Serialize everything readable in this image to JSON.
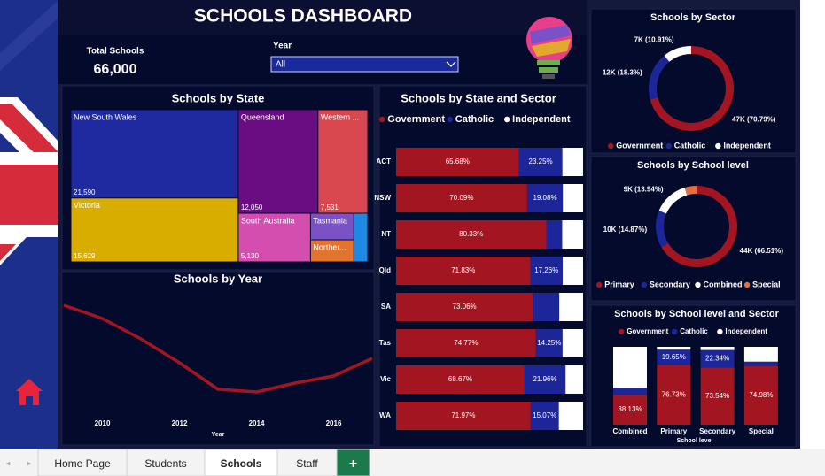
{
  "header": {
    "title": "SCHOOLS DASHBOARD"
  },
  "kpi": {
    "label": "Total Schools",
    "value": "66,000"
  },
  "filter": {
    "label": "Year",
    "value": "All"
  },
  "tabs": [
    "Home Page",
    "Students",
    "Schools",
    "Staff",
    "+"
  ],
  "chart_data": [
    {
      "type": "treemap",
      "title": "Schools by State",
      "categories": [
        "New South Wales",
        "Victoria",
        "Queensland",
        "Western ...",
        "South Australia",
        "Tasmania",
        "Norther...",
        null
      ],
      "values": [
        21590,
        15629,
        12050,
        7531,
        5130,
        1680,
        1400,
        990
      ],
      "value_labels": [
        "21,590",
        "15,629",
        "12,050",
        "7,531",
        "5,130",
        null,
        null,
        null
      ],
      "colors": [
        "#1f2aa0",
        "#d8ad00",
        "#6a0d83",
        "#d9474f",
        "#d44eb0",
        "#7b52c6",
        "#e2742f",
        "#1e88e5"
      ]
    },
    {
      "type": "line",
      "title": "Schools by Year",
      "xlabel": "Year",
      "x": [
        2009,
        2010,
        2011,
        2012,
        2013,
        2014,
        2015,
        2016,
        2017
      ],
      "values": [
        7525,
        7450,
        7335,
        7200,
        7050,
        7035,
        7085,
        7125,
        7225
      ],
      "xlim": [
        2009,
        2017
      ],
      "xticks": [
        2010,
        2012,
        2014,
        2016
      ],
      "ylim": [
        6900,
        7600
      ],
      "color": "#a31621"
    },
    {
      "type": "hbar_stacked",
      "title": "Schools by State and Sector",
      "categories": [
        "ACT",
        "NSW",
        "NT",
        "Qld",
        "SA",
        "Tas",
        "Vic",
        "WA"
      ],
      "xlim": [
        0,
        100
      ],
      "series": [
        {
          "name": "Government",
          "color": "#a31621",
          "values": [
            65.68,
            70.09,
            80.33,
            71.83,
            73.06,
            74.77,
            68.67,
            71.97
          ],
          "value_labels": [
            "65.68%",
            "70.09%",
            "80.33%",
            "71.83%",
            "73.06%",
            "74.77%",
            "68.67%",
            "71.97%"
          ]
        },
        {
          "name": "Catholic",
          "color": "#1c2699",
          "values": [
            23.25,
            19.08,
            8.5,
            17.26,
            14.2,
            14.25,
            21.96,
            15.07
          ],
          "value_labels": [
            "23.25%",
            "19.08%",
            null,
            "17.26%",
            null,
            "14.25%",
            "21.96%",
            "15.07%"
          ]
        },
        {
          "name": "Independent",
          "color": "#ffffff",
          "values": [
            11.07,
            10.83,
            11.17,
            10.91,
            12.74,
            10.98,
            9.37,
            12.96
          ],
          "value_labels": [
            null,
            null,
            null,
            null,
            null,
            null,
            null,
            null
          ]
        }
      ]
    },
    {
      "type": "donut",
      "title": "Schools by Sector",
      "categories": [
        "Government",
        "Catholic",
        "Independent"
      ],
      "values": [
        70.79,
        18.3,
        10.91
      ],
      "value_labels": [
        "47K (70.79%)",
        "12K (18.3%)",
        "7K (10.91%)"
      ],
      "colors": [
        "#a31621",
        "#1c2699",
        "#ffffff"
      ]
    },
    {
      "type": "donut",
      "title": "Schools by School level",
      "categories": [
        "Primary",
        "Secondary",
        "Combined",
        "Special"
      ],
      "values": [
        66.51,
        14.87,
        13.94,
        4.68
      ],
      "value_labels": [
        "44K (66.51%)",
        "10K (14.87%)",
        "9K (13.94%)",
        null
      ],
      "colors": [
        "#a31621",
        "#1c2699",
        "#ffffff",
        "#e07040"
      ]
    },
    {
      "type": "vbar_stacked",
      "title": "Schools by School level and Sector",
      "xlabel": "School level",
      "categories": [
        "Combined",
        "Primary",
        "Secondary",
        "Special"
      ],
      "ylim": [
        0,
        100
      ],
      "series": [
        {
          "name": "Government",
          "color": "#a31621",
          "values": [
            38.13,
            76.73,
            73.54,
            74.98
          ],
          "value_labels": [
            "38.13%",
            "76.73%",
            "73.54%",
            "74.98%"
          ]
        },
        {
          "name": "Catholic",
          "color": "#1c2699",
          "values": [
            9,
            19.65,
            22.34,
            6
          ],
          "value_labels": [
            null,
            "19.65%",
            "22.34%",
            null
          ]
        },
        {
          "name": "Independent",
          "color": "#ffffff",
          "values": [
            52.87,
            3.62,
            4.12,
            19.02
          ],
          "value_labels": [
            null,
            null,
            null,
            null
          ]
        }
      ]
    }
  ]
}
